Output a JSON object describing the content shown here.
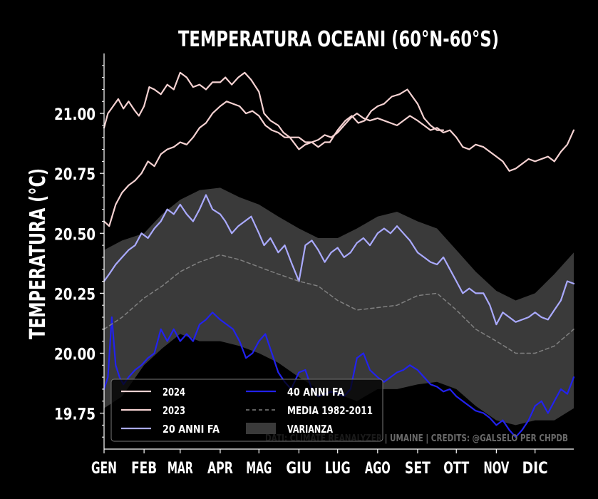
{
  "chart_data": {
    "type": "line",
    "title": "TEMPERATURA OCEANI (60°N-60°S)",
    "ylabel": "TEMPERATURA (°C)",
    "xlabel": "",
    "x_ticks": [
      "GEN",
      "FEB",
      "MAR",
      "APR",
      "MAG",
      "GIU",
      "LUG",
      "AGO",
      "SET",
      "OTT",
      "NOV",
      "DIC"
    ],
    "x_tick_days": [
      1,
      32,
      60,
      91,
      121,
      152,
      182,
      213,
      244,
      274,
      305,
      335
    ],
    "xlim": [
      1,
      365
    ],
    "y_ticks": [
      19.75,
      20.0,
      20.25,
      20.5,
      20.75,
      21.0
    ],
    "ylim": [
      19.6,
      21.25
    ],
    "grid": false,
    "legend_position": "bottom-left",
    "credits": "DATI: CLIMATE REANALYZER | UMAINE | CREDITS: @GALSELO PER CHPDB",
    "series": [
      {
        "name": "2024",
        "color": "#f5d2d2",
        "days": [
          1,
          4,
          8,
          12,
          16,
          20,
          25,
          28,
          32,
          36,
          40,
          45,
          50,
          55,
          60,
          65,
          70,
          75,
          80,
          85,
          91,
          95,
          100,
          105,
          110,
          115,
          121,
          125,
          130,
          136,
          140,
          145,
          152,
          157,
          162,
          167,
          172,
          176,
          182,
          188,
          193,
          198,
          203,
          208,
          213,
          218,
          224,
          230,
          236,
          244,
          249,
          254,
          259,
          264
        ],
        "values": [
          20.94,
          21.0,
          21.03,
          21.06,
          21.02,
          21.05,
          21.01,
          20.99,
          21.03,
          21.11,
          21.1,
          21.08,
          21.12,
          21.1,
          21.17,
          21.15,
          21.11,
          21.12,
          21.1,
          21.13,
          21.13,
          21.15,
          21.12,
          21.15,
          21.17,
          21.14,
          21.09,
          21.0,
          20.97,
          20.95,
          20.92,
          20.9,
          20.85,
          20.87,
          20.88,
          20.86,
          20.88,
          20.88,
          20.93,
          20.97,
          20.99,
          20.96,
          20.97,
          21.01,
          21.03,
          21.04,
          21.07,
          21.08,
          21.1,
          21.04,
          20.98,
          20.95,
          20.93,
          20.93
        ]
      },
      {
        "name": "2023",
        "color": "#f5d2d2",
        "days": [
          1,
          5,
          10,
          15,
          20,
          25,
          30,
          35,
          40,
          45,
          50,
          55,
          60,
          65,
          70,
          75,
          80,
          85,
          91,
          96,
          101,
          106,
          111,
          116,
          121,
          126,
          131,
          136,
          141,
          146,
          152,
          157,
          162,
          167,
          172,
          177,
          182,
          187,
          192,
          197,
          202,
          207,
          213,
          218,
          223,
          228,
          233,
          238,
          244,
          249,
          254,
          259,
          264,
          269,
          274,
          279,
          284,
          289,
          295,
          300,
          305,
          310,
          315,
          320,
          325,
          330,
          335,
          340,
          345,
          350,
          355,
          360,
          365
        ],
        "values": [
          20.55,
          20.53,
          20.62,
          20.67,
          20.7,
          20.72,
          20.75,
          20.8,
          20.78,
          20.83,
          20.85,
          20.86,
          20.88,
          20.87,
          20.9,
          20.94,
          20.96,
          21.0,
          21.03,
          21.05,
          21.04,
          21.03,
          21.0,
          21.01,
          20.99,
          20.95,
          20.93,
          20.92,
          20.9,
          20.9,
          20.9,
          20.88,
          20.88,
          20.89,
          20.91,
          20.9,
          20.92,
          20.95,
          20.98,
          21.0,
          20.98,
          20.97,
          20.98,
          20.97,
          20.96,
          20.95,
          20.97,
          20.99,
          20.97,
          20.95,
          20.93,
          20.94,
          20.92,
          20.93,
          20.9,
          20.86,
          20.85,
          20.87,
          20.86,
          20.84,
          20.82,
          20.8,
          20.76,
          20.77,
          20.79,
          20.81,
          20.8,
          20.81,
          20.82,
          20.8,
          20.84,
          20.87,
          20.93
        ]
      },
      {
        "name": "20 ANNI FA",
        "color": "#aaaaff",
        "days": [
          1,
          5,
          10,
          15,
          20,
          25,
          30,
          35,
          40,
          45,
          50,
          55,
          60,
          65,
          70,
          75,
          80,
          85,
          91,
          95,
          100,
          105,
          110,
          115,
          121,
          125,
          130,
          136,
          141,
          146,
          152,
          157,
          162,
          167,
          172,
          177,
          182,
          187,
          192,
          197,
          202,
          207,
          213,
          218,
          223,
          228,
          233,
          238,
          244,
          249,
          254,
          259,
          264,
          269,
          274,
          279,
          284,
          289,
          295,
          300,
          305,
          310,
          315,
          320,
          325,
          330,
          335,
          340,
          345,
          350,
          355,
          360,
          365
        ],
        "values": [
          20.3,
          20.33,
          20.37,
          20.4,
          20.43,
          20.45,
          20.5,
          20.48,
          20.52,
          20.55,
          20.6,
          20.58,
          20.62,
          20.58,
          20.55,
          20.6,
          20.66,
          20.6,
          20.58,
          20.55,
          20.5,
          20.53,
          20.55,
          20.57,
          20.5,
          20.45,
          20.48,
          20.42,
          20.45,
          20.38,
          20.3,
          20.45,
          20.47,
          20.43,
          20.38,
          20.42,
          20.44,
          20.4,
          20.42,
          20.46,
          20.48,
          20.45,
          20.5,
          20.52,
          20.5,
          20.53,
          20.5,
          20.47,
          20.42,
          20.4,
          20.38,
          20.37,
          20.4,
          20.35,
          20.3,
          20.25,
          20.27,
          20.25,
          20.25,
          20.2,
          20.12,
          20.17,
          20.15,
          20.13,
          20.14,
          20.15,
          20.17,
          20.15,
          20.14,
          20.18,
          20.22,
          20.3,
          20.29
        ]
      },
      {
        "name": "40 ANNI FA",
        "color": "#2222ee",
        "days": [
          1,
          4,
          7,
          10,
          13,
          16,
          20,
          25,
          30,
          35,
          40,
          45,
          50,
          55,
          60,
          65,
          70,
          75,
          80,
          85,
          91,
          96,
          101,
          106,
          111,
          116,
          121,
          126,
          131,
          136,
          141,
          146,
          152,
          157,
          162,
          167,
          172,
          177,
          182,
          187,
          192,
          197,
          202,
          207,
          213,
          218,
          223,
          228,
          233,
          238,
          244,
          249,
          254,
          259,
          264,
          269,
          274,
          279,
          284,
          289,
          295,
          300,
          305,
          310,
          315,
          320,
          325,
          330,
          335,
          340,
          345,
          350,
          355,
          360,
          365
        ],
        "values": [
          19.85,
          19.9,
          20.15,
          19.95,
          19.9,
          19.87,
          19.9,
          19.93,
          19.95,
          19.98,
          20.0,
          20.1,
          20.05,
          20.1,
          20.05,
          20.08,
          20.05,
          20.12,
          20.14,
          20.17,
          20.14,
          20.12,
          20.1,
          20.05,
          19.98,
          20.0,
          20.05,
          20.08,
          20.0,
          19.92,
          19.88,
          19.85,
          19.92,
          19.93,
          19.85,
          19.82,
          19.83,
          19.84,
          19.83,
          19.82,
          19.85,
          19.98,
          20.0,
          19.93,
          19.9,
          19.88,
          19.9,
          19.92,
          19.93,
          19.95,
          19.93,
          19.9,
          19.87,
          19.86,
          19.84,
          19.85,
          19.82,
          19.8,
          19.78,
          19.76,
          19.75,
          19.73,
          19.7,
          19.72,
          19.68,
          19.65,
          19.68,
          19.72,
          19.78,
          19.8,
          19.75,
          19.8,
          19.85,
          19.83,
          19.9
        ]
      },
      {
        "name": "MEDIA 1982-2011",
        "color": "#808080",
        "dashed": true,
        "days": [
          1,
          15,
          32,
          46,
          60,
          75,
          91,
          106,
          121,
          136,
          152,
          167,
          182,
          197,
          213,
          228,
          244,
          259,
          274,
          289,
          305,
          320,
          335,
          350,
          365
        ],
        "values": [
          20.1,
          20.15,
          20.23,
          20.28,
          20.34,
          20.38,
          20.41,
          20.39,
          20.36,
          20.33,
          20.3,
          20.28,
          20.22,
          20.18,
          20.19,
          20.2,
          20.24,
          20.25,
          20.18,
          20.1,
          20.05,
          20.0,
          20.0,
          20.03,
          20.1
        ]
      }
    ],
    "variance": {
      "name": "VARIANZA",
      "color": "#3a3a3a",
      "days": [
        1,
        15,
        32,
        46,
        60,
        75,
        91,
        106,
        121,
        136,
        152,
        167,
        182,
        197,
        213,
        228,
        244,
        259,
        274,
        289,
        305,
        320,
        335,
        350,
        365
      ],
      "upper": [
        20.43,
        20.47,
        20.5,
        20.58,
        20.64,
        20.68,
        20.69,
        20.65,
        20.62,
        20.57,
        20.52,
        20.48,
        20.48,
        20.52,
        20.57,
        20.59,
        20.55,
        20.52,
        20.43,
        20.34,
        20.26,
        20.22,
        20.25,
        20.33,
        20.42
      ],
      "lower": [
        19.77,
        19.82,
        19.95,
        20.02,
        20.08,
        20.05,
        20.05,
        20.03,
        20.0,
        19.96,
        19.9,
        19.85,
        19.83,
        19.8,
        19.85,
        19.85,
        19.87,
        19.88,
        19.85,
        19.78,
        19.72,
        19.7,
        19.72,
        19.72,
        19.77
      ]
    }
  }
}
